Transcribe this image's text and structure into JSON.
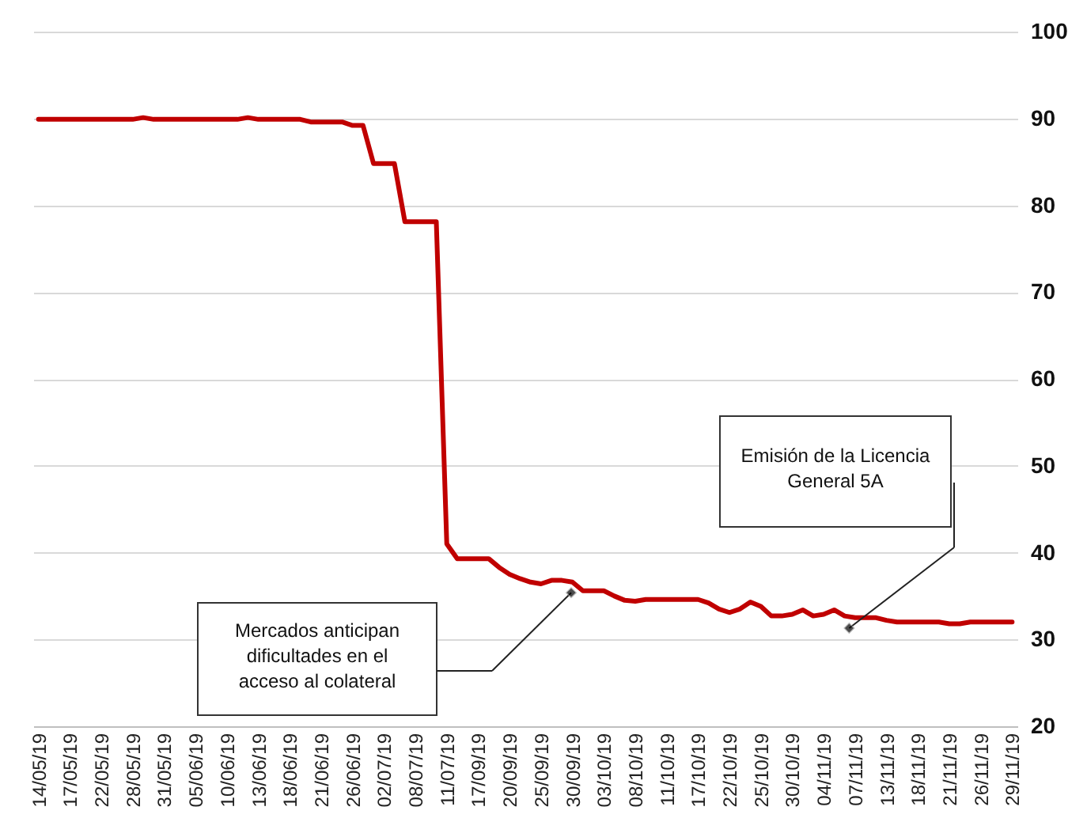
{
  "chart_data": {
    "type": "line",
    "categories": [
      "14/05/19",
      null,
      null,
      "17/05/19",
      null,
      null,
      "22/05/19",
      null,
      null,
      "28/05/19",
      null,
      null,
      "31/05/19",
      null,
      null,
      "05/06/19",
      null,
      null,
      "10/06/19",
      null,
      null,
      "13/06/19",
      null,
      null,
      "18/06/19",
      null,
      null,
      "21/06/19",
      null,
      null,
      "26/06/19",
      null,
      null,
      "02/07/19",
      null,
      null,
      "08/07/19",
      null,
      null,
      "11/07/19",
      null,
      null,
      "17/09/19",
      null,
      null,
      "20/09/19",
      null,
      null,
      "25/09/19",
      null,
      null,
      "30/09/19",
      null,
      null,
      "03/10/19",
      null,
      null,
      "08/10/19",
      null,
      null,
      "11/10/19",
      null,
      null,
      "17/10/19",
      null,
      null,
      "22/10/19",
      null,
      null,
      "25/10/19",
      null,
      null,
      "30/10/19",
      null,
      null,
      "04/11/19",
      null,
      null,
      "07/11/19",
      null,
      null,
      "13/11/19",
      null,
      null,
      "18/11/19",
      null,
      null,
      "21/11/19",
      null,
      null,
      "26/11/19",
      null,
      null,
      "29/11/19"
    ],
    "series": [
      {
        "color": "#c00000",
        "values": [
          89.9,
          89.9,
          89.9,
          89.9,
          89.9,
          89.9,
          89.9,
          89.9,
          89.9,
          89.9,
          90.1,
          89.9,
          89.9,
          89.9,
          89.9,
          89.9,
          89.9,
          89.9,
          89.9,
          89.9,
          90.1,
          89.9,
          89.9,
          89.9,
          89.9,
          89.9,
          89.6,
          89.6,
          89.6,
          89.6,
          89.2,
          89.2,
          84.8,
          84.8,
          84.8,
          78.1,
          78.1,
          78.1,
          78.1,
          41.0,
          39.3,
          39.3,
          39.3,
          39.3,
          38.3,
          37.5,
          37.0,
          36.6,
          36.4,
          36.8,
          36.8,
          36.6,
          35.6,
          35.6,
          35.6,
          35.0,
          34.5,
          34.4,
          34.6,
          34.6,
          34.6,
          34.6,
          34.6,
          34.6,
          34.2,
          33.5,
          33.1,
          33.5,
          34.3,
          33.8,
          32.7,
          32.7,
          32.9,
          33.4,
          32.7,
          32.9,
          33.4,
          32.7,
          32.5,
          32.5,
          32.5,
          32.2,
          32.0,
          32.0,
          32.0,
          32.0,
          32.0,
          31.8,
          31.8,
          32.0,
          32.0,
          32.0,
          32.0,
          32.0
        ]
      }
    ],
    "ylim": [
      20,
      100
    ],
    "yticks": [
      20,
      30,
      40,
      50,
      60,
      70,
      80,
      90,
      100
    ],
    "grid": "y",
    "line_style": "solid",
    "marker": "none",
    "annotations": [
      "Mercados anticipan dificultades en el acceso al colateral",
      "Emisión de la Licencia General 5A"
    ]
  }
}
